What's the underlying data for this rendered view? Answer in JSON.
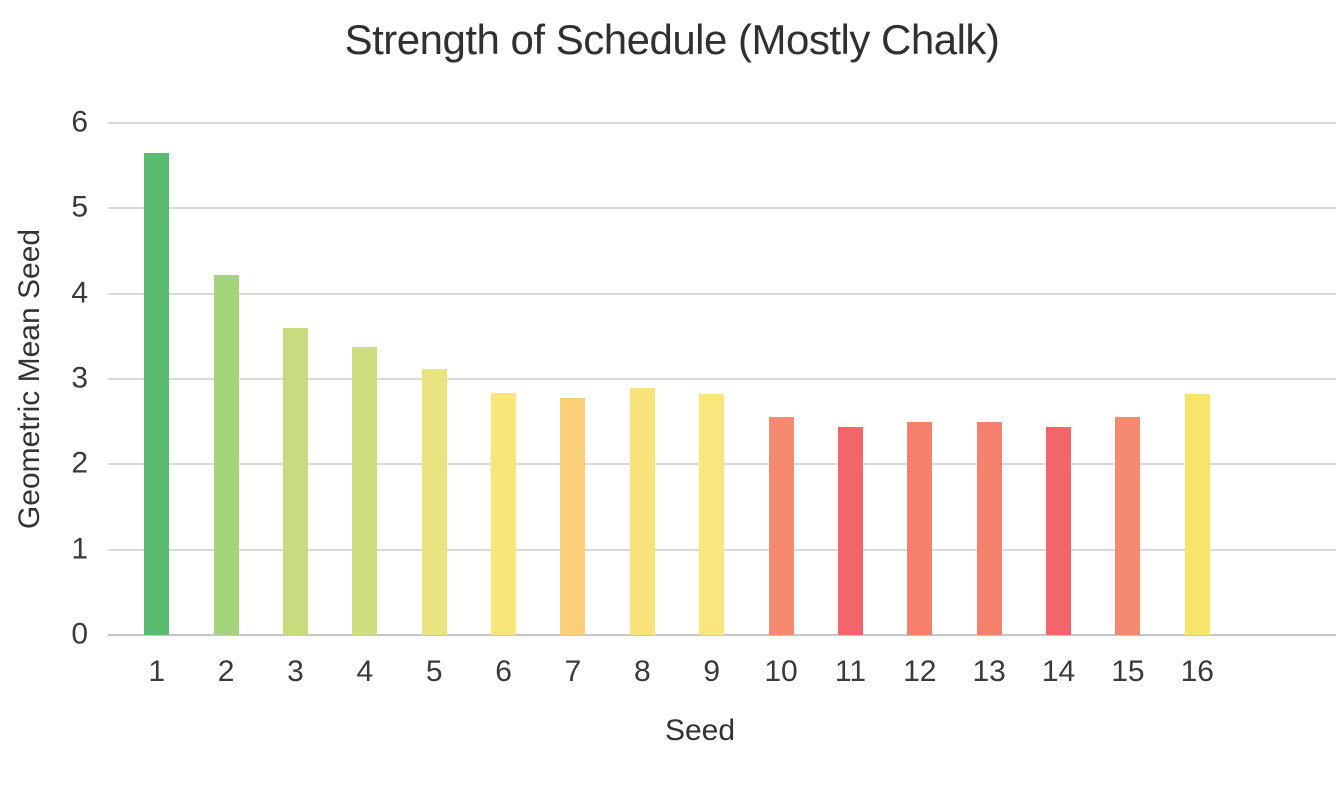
{
  "chart_data": {
    "type": "bar",
    "title": "Strength of Schedule (Mostly Chalk)",
    "xlabel": "Seed",
    "ylabel": "Geometric Mean Seed",
    "categories": [
      "1",
      "2",
      "3",
      "4",
      "5",
      "6",
      "7",
      "8",
      "9",
      "10",
      "11",
      "12",
      "13",
      "14",
      "15",
      "16"
    ],
    "values": [
      5.65,
      4.22,
      3.6,
      3.38,
      3.12,
      2.84,
      2.78,
      2.9,
      2.82,
      2.55,
      2.44,
      2.5,
      2.5,
      2.44,
      2.55,
      2.82
    ],
    "bar_colors": [
      "#5BBB70",
      "#A4D57C",
      "#C6DC7E",
      "#CFDF7F",
      "#E9E480",
      "#F9E679",
      "#F9D077",
      "#F8E37A",
      "#F9E77E",
      "#F68A70",
      "#F4646B",
      "#F6806D",
      "#F6826E",
      "#F4646B",
      "#F68A70",
      "#F9E46A"
    ],
    "ylim": [
      0,
      6
    ],
    "yticks": [
      0,
      1,
      2,
      3,
      4,
      5,
      6
    ],
    "grid": "horizontal",
    "gridline_color": "#D9D9D9",
    "axis_line_color": "#C6C6C6",
    "background": "#FFFFFF",
    "legend": "none"
  }
}
